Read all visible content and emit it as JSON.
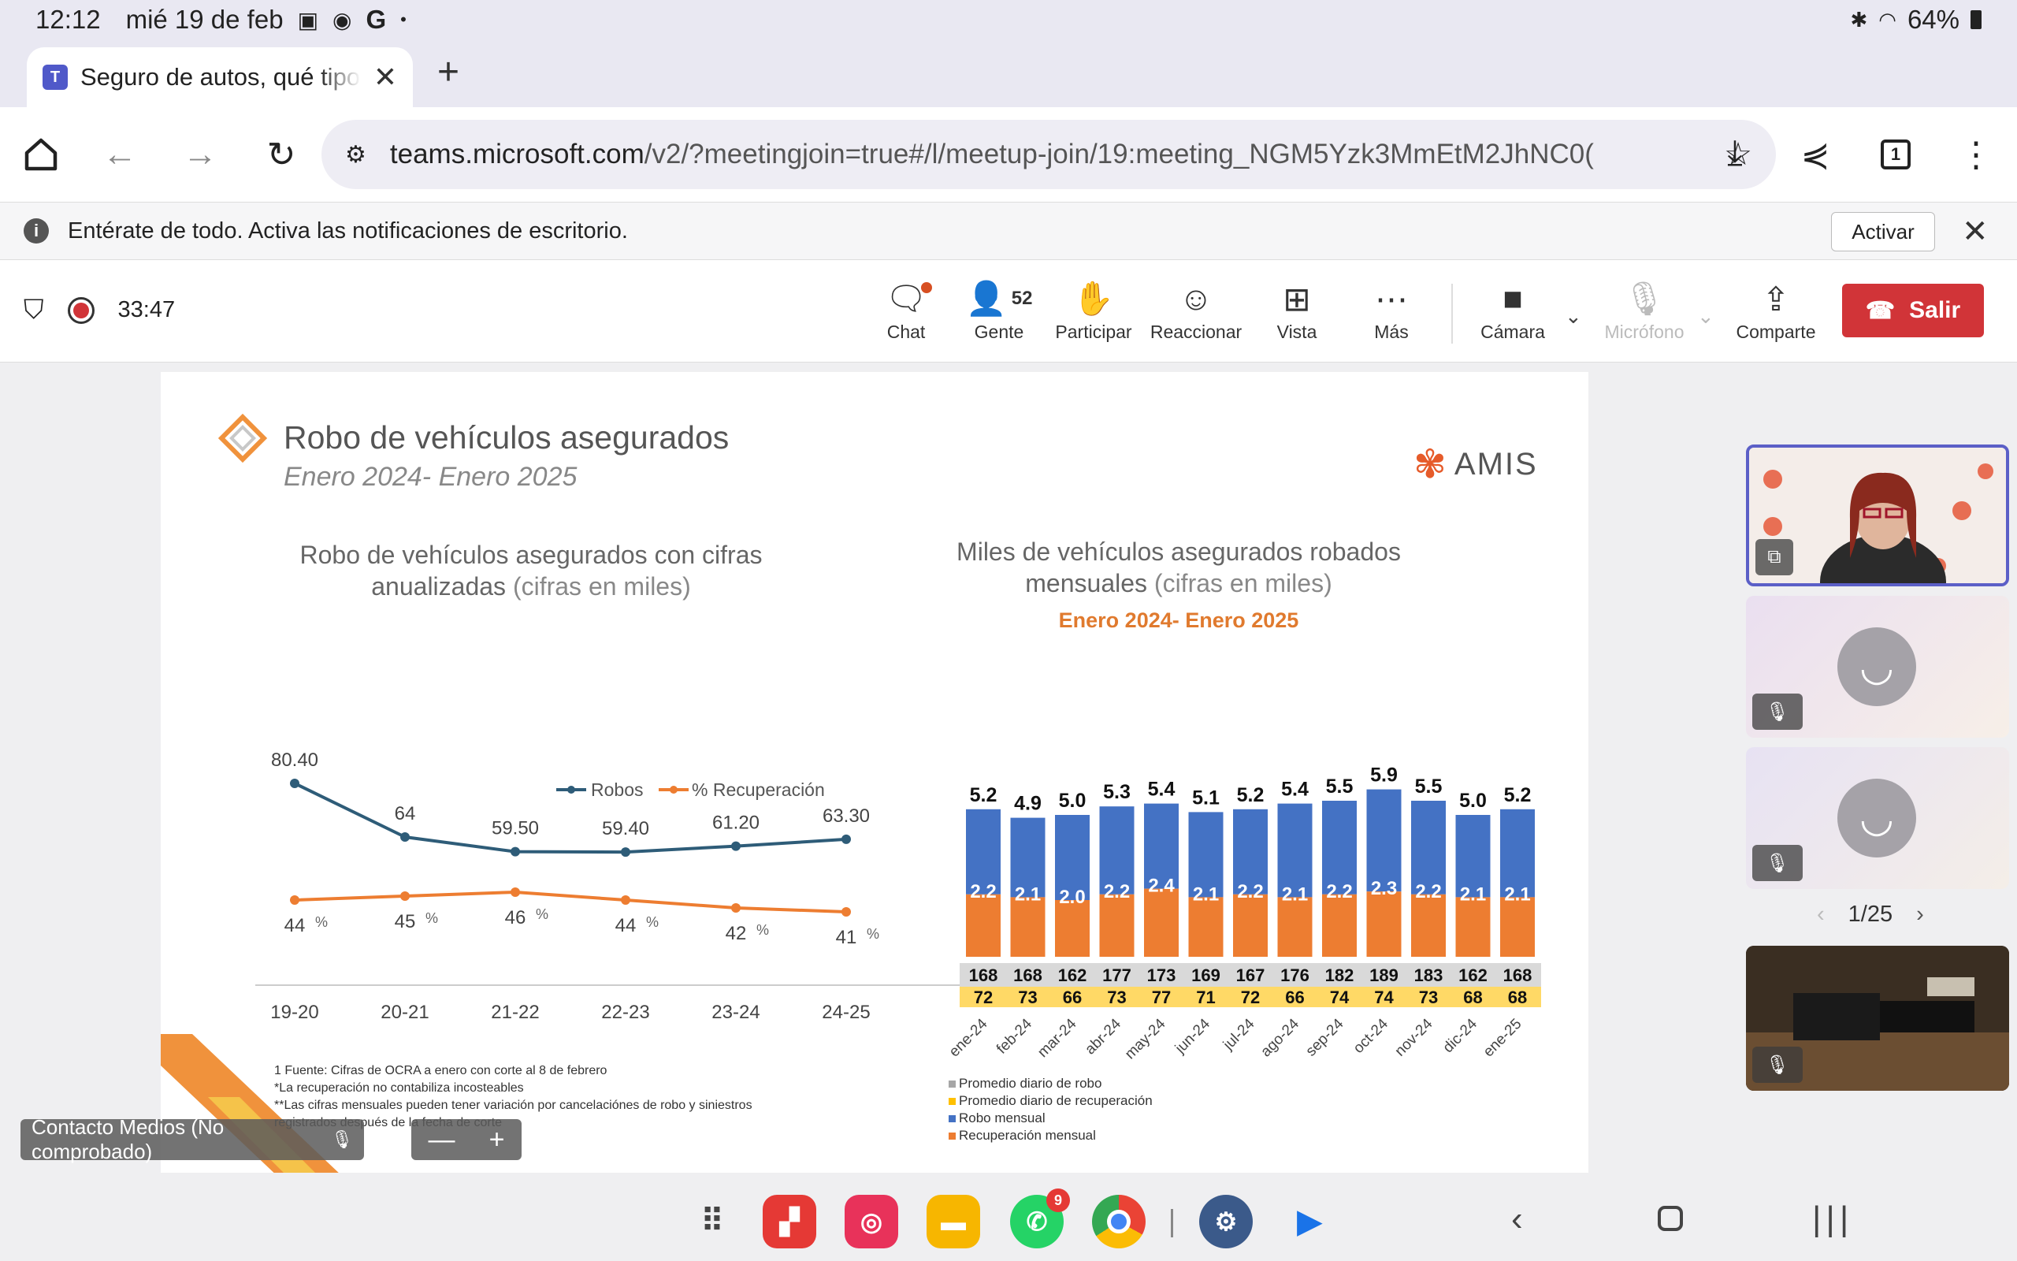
{
  "status": {
    "time": "12:12",
    "date": "mié 19 de feb",
    "battery": "64%"
  },
  "tab": {
    "title": "Seguro de autos, qué tipo de",
    "close": "✕",
    "new": "+"
  },
  "omnibox": {
    "domain": "teams.microsoft.com",
    "path": "/v2/?meetingjoin=true#/l/meetup-join/19:meeting_NGM5Yzk3MmEtM2JhNC0("
  },
  "notification": {
    "text": "Entérate de todo. Activa las notificaciones de escritorio.",
    "button": "Activar"
  },
  "meeting": {
    "timer": "33:47",
    "people_count": "52",
    "controls": {
      "chat": "Chat",
      "people": "Gente",
      "participate": "Participar",
      "react": "Reaccionar",
      "view": "Vista",
      "more": "Más",
      "camera": "Cámara",
      "mic": "Micrófono",
      "share": "Comparte",
      "leave": "Salir"
    }
  },
  "slide": {
    "title": "Robo de vehículos asegurados",
    "subtitle": "Enero 2024- Enero 2025",
    "logo": "AMIS",
    "left_chart": {
      "title_main": "Robo de vehículos asegurados con cifras anualizadas",
      "title_light": "(cifras en miles)"
    },
    "right_chart": {
      "title_main": "Miles de vehículos asegurados robados mensuales",
      "title_light": "(cifras en miles)",
      "subtitle": "Enero 2024- Enero 2025"
    },
    "footnotes": [
      "1 Fuente: Cifras de OCRA a enero con corte al 8 de febrero",
      "*La recuperación no contabiliza incosteables",
      "**Las cifras mensuales pueden tener variación por cancelaciónes de robo y siniestros registrados después de la fecha de corte"
    ],
    "legend": [
      {
        "label": "Promedio diario de robo",
        "color": "#a6a6a6"
      },
      {
        "label": "Promedio diario de recuperación",
        "color": "#ffc000"
      },
      {
        "label": "Robo mensual",
        "color": "#4472c4"
      },
      {
        "label": "Recuperación mensual",
        "color": "#ed7d31"
      }
    ]
  },
  "chart_data": [
    {
      "type": "line",
      "categories": [
        "19-20",
        "20-21",
        "21-22",
        "22-23",
        "23-24",
        "24-25"
      ],
      "series": [
        {
          "name": "Robos",
          "values": [
            80.4,
            64,
            59.5,
            59.4,
            61.2,
            63.3
          ],
          "labels": [
            "80.40",
            "64",
            "59.50",
            "59.40",
            "61.20",
            "63.30"
          ],
          "color": "#2e5c78"
        },
        {
          "name": "% Recuperación",
          "values": [
            44,
            45,
            46,
            44,
            42,
            41
          ],
          "labels": [
            "44",
            "45",
            "46",
            "44",
            "42",
            "41"
          ],
          "color": "#ed7d31"
        }
      ],
      "percent_sign": "%"
    },
    {
      "type": "bar",
      "categories": [
        "ene-24",
        "feb-24",
        "mar-24",
        "abr-24",
        "may-24",
        "jun-24",
        "jul-24",
        "ago-24",
        "sep-24",
        "oct-24",
        "nov-24",
        "dic-24",
        "ene-25"
      ],
      "totals": [
        "5.2",
        "4.9",
        "5.0",
        "5.3",
        "5.4",
        "5.1",
        "5.2",
        "5.4",
        "5.5",
        "5.9",
        "5.5",
        "5.0",
        "5.2"
      ],
      "series": [
        {
          "name": "Robo mensual",
          "values": [
            5.2,
            4.9,
            5.0,
            5.3,
            5.4,
            5.1,
            5.2,
            5.4,
            5.5,
            5.9,
            5.5,
            5.0,
            5.2
          ],
          "color": "#4472c4"
        },
        {
          "name": "Recuperación mensual",
          "values": [
            2.2,
            2.1,
            2.0,
            2.2,
            2.4,
            2.1,
            2.2,
            2.1,
            2.2,
            2.3,
            2.2,
            2.1,
            2.1
          ],
          "labels": [
            "2.2",
            "2.1",
            "2.0",
            "2.2",
            "2.4",
            "2.1",
            "2.2",
            "2.1",
            "2.2",
            "2.3",
            "2.2",
            "2.1",
            "2.1"
          ],
          "color": "#ed7d31"
        }
      ],
      "daily_theft": [
        "168",
        "168",
        "162",
        "177",
        "173",
        "169",
        "167",
        "176",
        "182",
        "189",
        "183",
        "162",
        "168"
      ],
      "daily_recovery": [
        "72",
        "73",
        "66",
        "73",
        "77",
        "71",
        "72",
        "66",
        "74",
        "74",
        "73",
        "68",
        "68"
      ]
    }
  ],
  "participants": {
    "pager": "1/25",
    "caller": "Contacto Medios (No comprobado)",
    "zoom_minus": "—",
    "zoom_plus": "+"
  }
}
